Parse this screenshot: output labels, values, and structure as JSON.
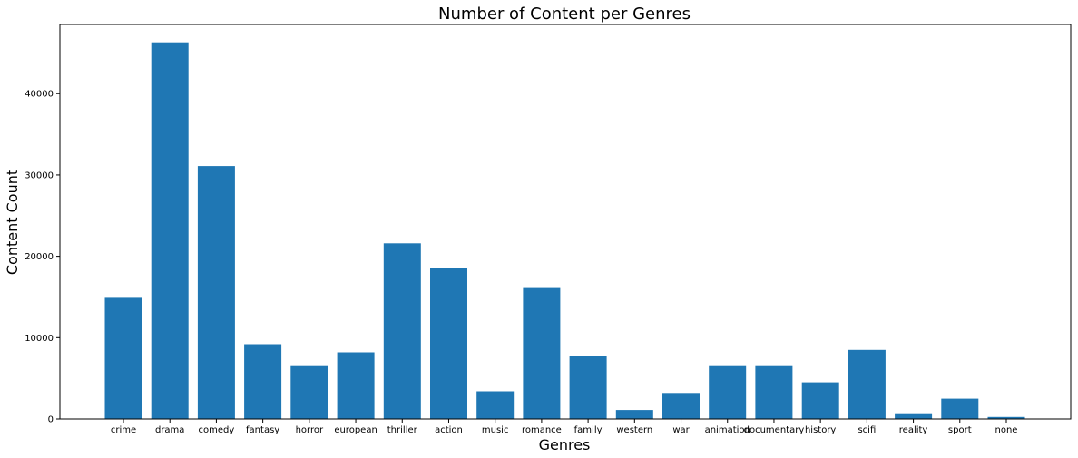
{
  "chart_data": {
    "type": "bar",
    "title": "Number of Content per Genres",
    "xlabel": "Genres",
    "ylabel": "Content Count",
    "categories": [
      "crime",
      "drama",
      "comedy",
      "fantasy",
      "horror",
      "european",
      "thriller",
      "action",
      "music",
      "romance",
      "family",
      "western",
      "war",
      "animation",
      "documentary",
      "history",
      "scifi",
      "reality",
      "sport",
      "none"
    ],
    "values": [
      14900,
      46300,
      31100,
      9200,
      6500,
      8200,
      21600,
      18600,
      3400,
      16100,
      7700,
      1100,
      3200,
      6500,
      6500,
      4500,
      8500,
      700,
      2500,
      250
    ],
    "yticks": [
      0,
      10000,
      20000,
      30000,
      40000
    ],
    "ylim": [
      0,
      48500
    ],
    "grid": false,
    "legend": "none",
    "bar_color": "#1f77b4"
  }
}
